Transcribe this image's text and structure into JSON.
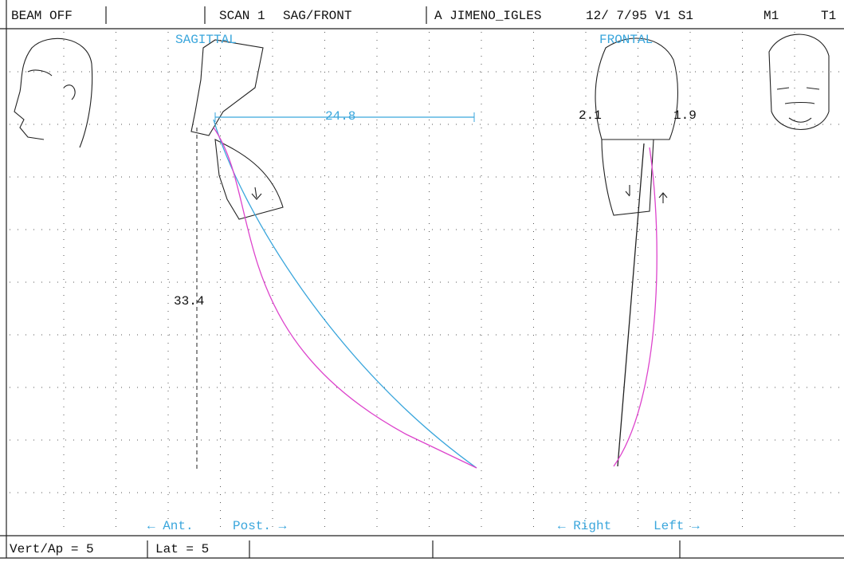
{
  "header": {
    "cells": [
      "BEAM OFF",
      "SCAN 1",
      "SAG/FRONT",
      "A JIMENO_IGLES",
      "12/ 7/95",
      "V1 S1",
      "M1",
      "T1"
    ]
  },
  "sagittal": {
    "title": "SAGITTAL",
    "horizontal_measure": 24.8,
    "vertical_measure": 33.4,
    "left_label": "← Ant.",
    "right_label": "Post. →"
  },
  "frontal": {
    "title": "FRONTAL",
    "left_measure": 2.1,
    "right_measure": 1.9,
    "left_label": "← Right",
    "right_label": "Left →"
  },
  "footer": {
    "cells": [
      "Vert/Ap = 5",
      "Lat = 5"
    ]
  }
}
